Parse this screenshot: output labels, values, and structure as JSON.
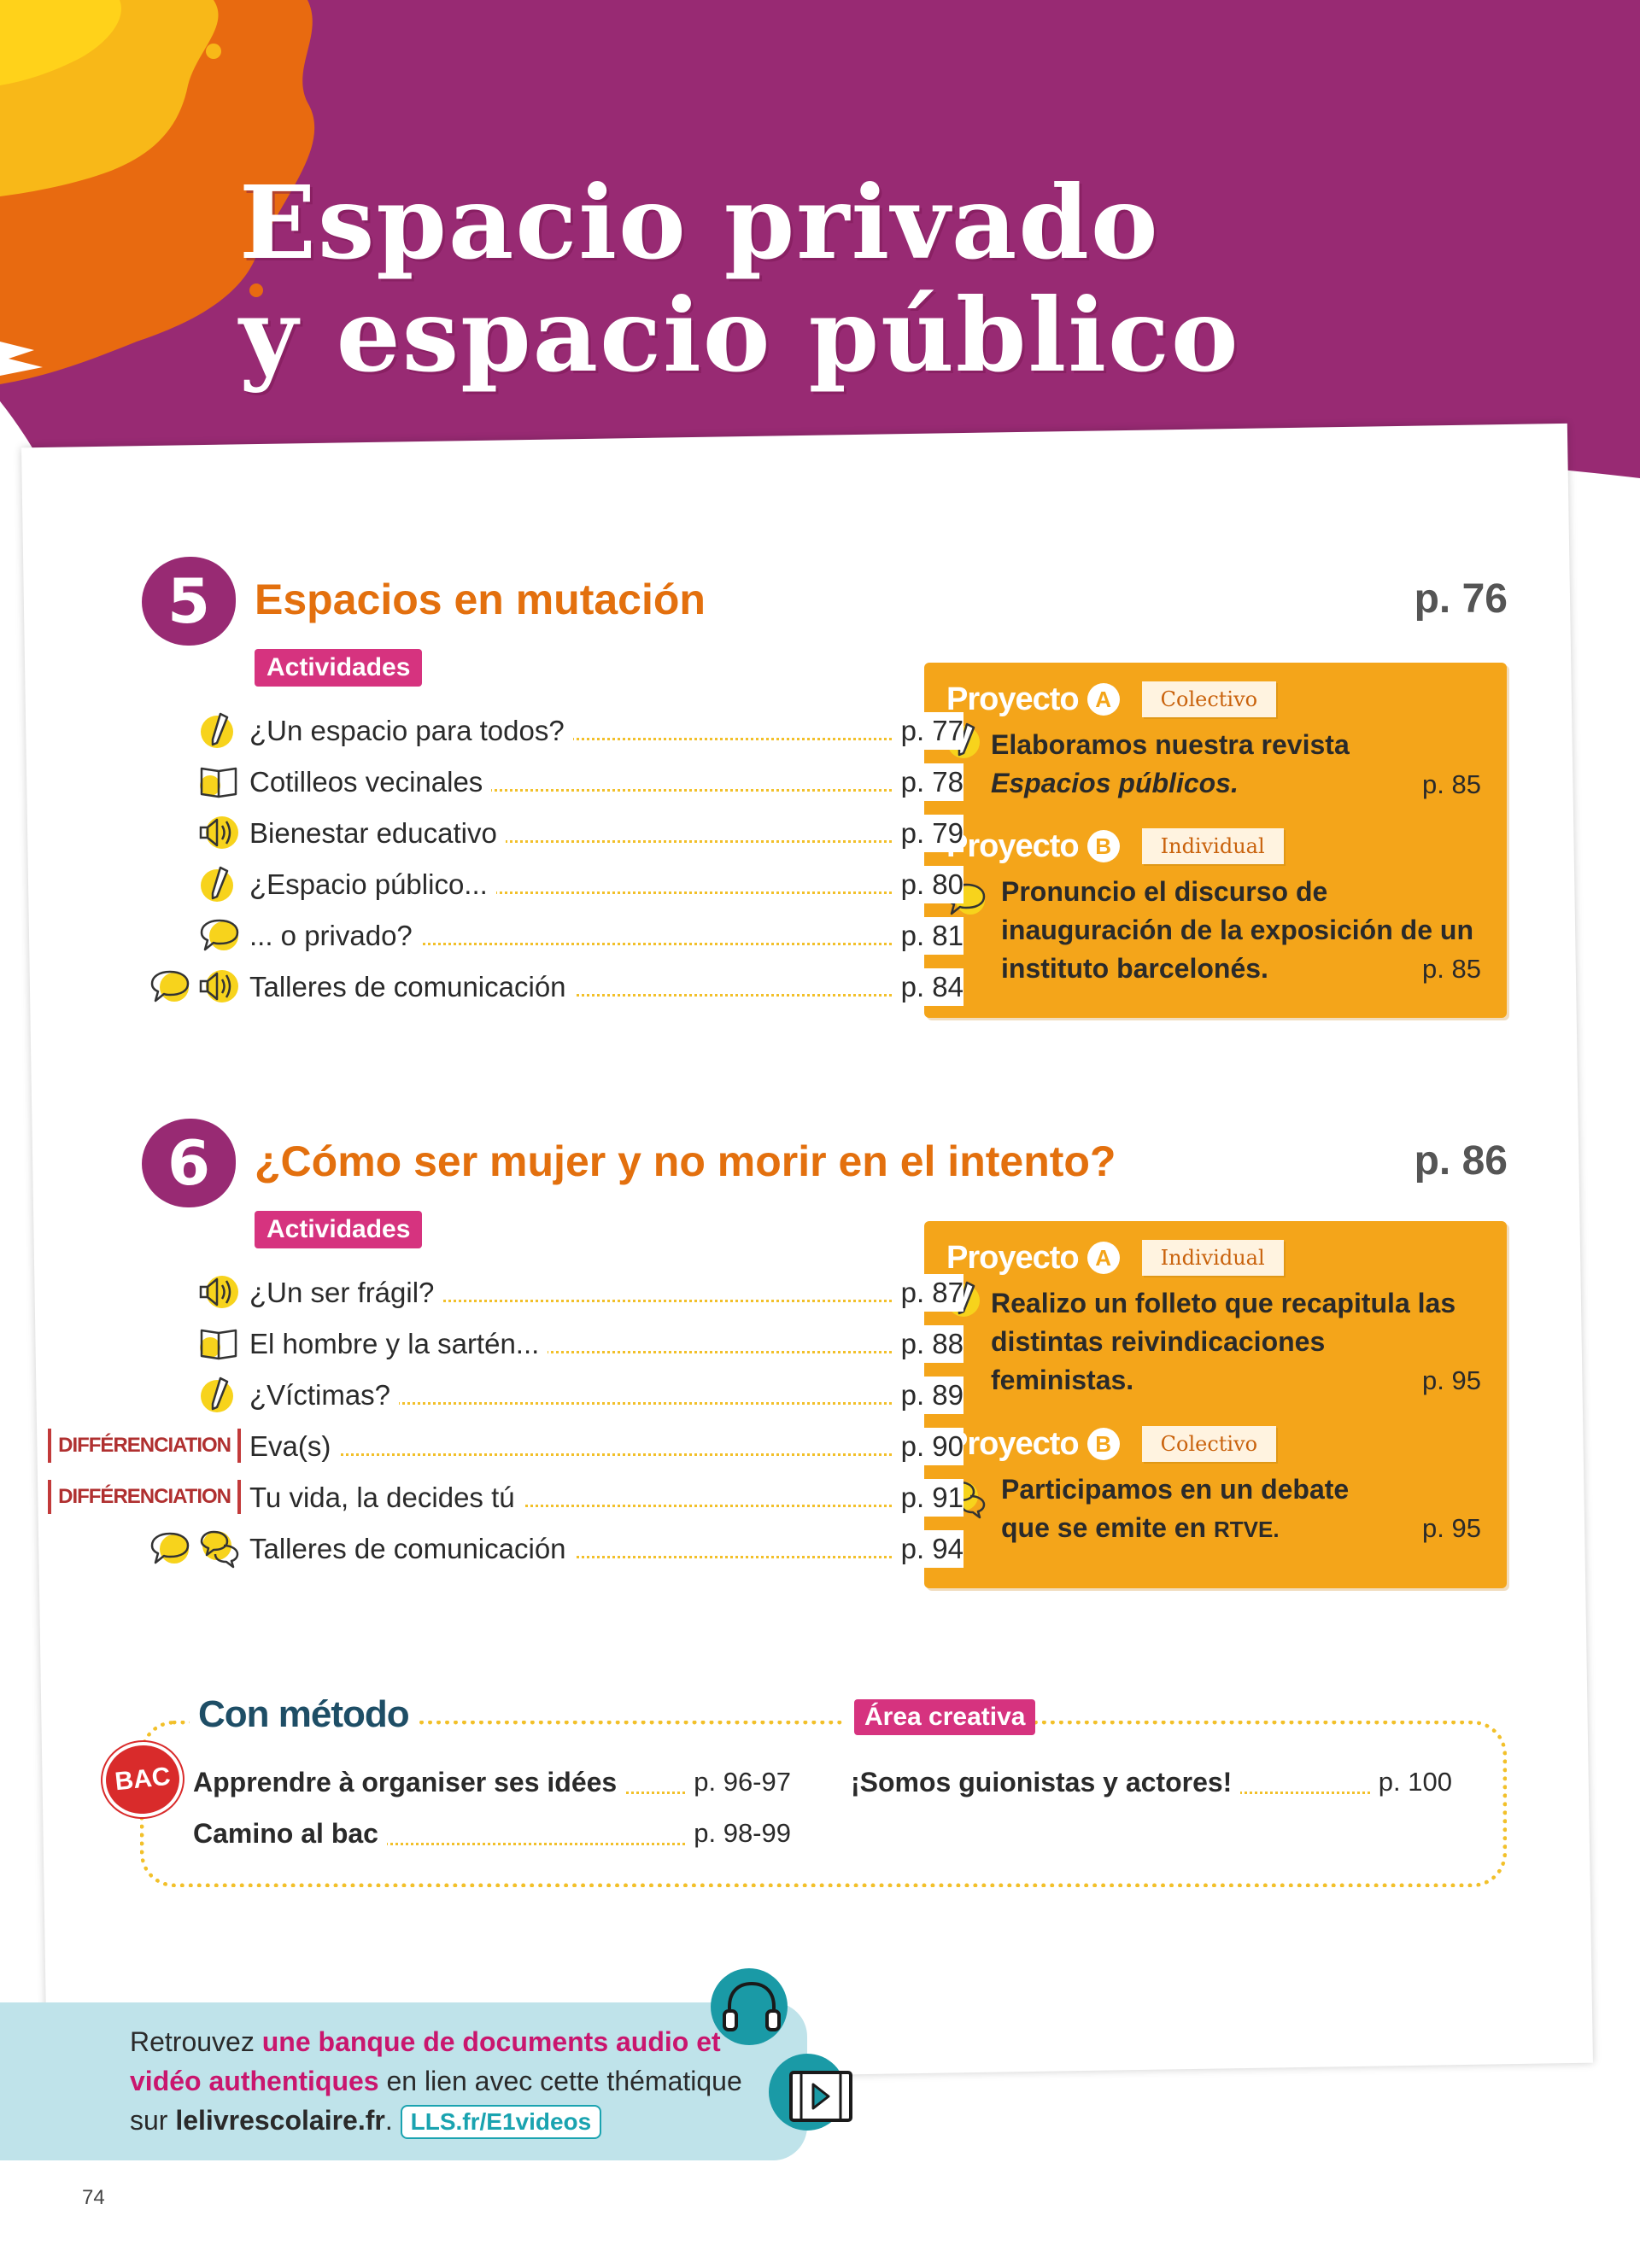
{
  "page": {
    "title_line1": "Espacio privado",
    "title_line2": "y espacio público",
    "page_number": "74"
  },
  "chapters": [
    {
      "number": "5",
      "title": "Espacios en mutación",
      "page": "p. 76",
      "activities_label": "Actividades",
      "activities": [
        {
          "label": "¿Un espacio para todos?",
          "page": "p. 77",
          "icons": [
            "pencil-icon"
          ]
        },
        {
          "label": "Cotilleos vecinales",
          "page": "p. 78",
          "icons": [
            "book-icon"
          ]
        },
        {
          "label": "Bienestar educativo",
          "page": "p. 79",
          "icons": [
            "audio-icon"
          ]
        },
        {
          "label": "¿Espacio público...",
          "page": "p. 80",
          "icons": [
            "pencil-icon"
          ]
        },
        {
          "label": "... o privado?",
          "page": "p. 81",
          "icons": [
            "speech-bubble-icon"
          ]
        },
        {
          "label": "Talleres de comunicación",
          "page": "p. 84",
          "icons": [
            "speech-bubble-icon",
            "audio-icon"
          ]
        }
      ],
      "projects": [
        {
          "word": "Proyecto",
          "letter": "A",
          "type": "Colectivo",
          "text_main": "Elaboramos nuestra revista ",
          "text_em": "Espacios públicos.",
          "page": "p. 85",
          "icon": "pencil-icon"
        },
        {
          "word": "Proyecto",
          "letter": "B",
          "type": "Individual",
          "text_main": "Pronuncio el discurso de inauguración de la exposición de un instituto barcelonés.",
          "page": "p. 85",
          "icon": "speech-bubble-icon"
        }
      ]
    },
    {
      "number": "6",
      "title": "¿Cómo ser mujer y no morir en el intento?",
      "page": "p. 86",
      "activities_label": "Actividades",
      "activities": [
        {
          "label": "¿Un ser frágil?",
          "page": "p. 87",
          "icons": [
            "audio-icon"
          ]
        },
        {
          "label": "El hombre y la sartén...",
          "page": "p. 88",
          "icons": [
            "book-icon"
          ]
        },
        {
          "label": "¿Víctimas?",
          "page": "p. 89",
          "icons": [
            "pencil-icon"
          ]
        },
        {
          "label": "Eva(s)",
          "page": "p. 90",
          "icons": [
            "differenciation-tag"
          ]
        },
        {
          "label": "Tu vida, la decides tú",
          "page": "p. 91",
          "icons": [
            "differenciation-tag"
          ]
        },
        {
          "label": "Talleres de comunicación",
          "page": "p. 94",
          "icons": [
            "speech-bubble-icon",
            "dialogue-icon"
          ]
        }
      ],
      "projects": [
        {
          "word": "Proyecto",
          "letter": "A",
          "type": "Individual",
          "text_main": "Realizo un folleto que recapitula las distintas reivindicaciones feministas.",
          "page": "p. 95",
          "icon": "pencil-icon"
        },
        {
          "word": "Proyecto",
          "letter": "B",
          "type": "Colectivo",
          "text_main": "Participamos en un debate que se emite en ",
          "text_sc": "RTVE.",
          "page": "p. 95",
          "icon": "dialogue-icon"
        }
      ]
    }
  ],
  "differenciation_label": "DIFFÉRENCIATION",
  "method": {
    "title": "Con método",
    "bac_label": "BAC",
    "items": [
      {
        "label": "Apprendre à organiser ses idées",
        "page": "p. 96-97"
      },
      {
        "label": "Camino al bac",
        "page": "p. 98-99"
      }
    ]
  },
  "creative": {
    "badge": "Área creativa",
    "items": [
      {
        "label": "¡Somos guionistas y actores!",
        "page": "p. 100"
      }
    ]
  },
  "info": {
    "t1": "Retrouvez ",
    "hl1": "une banque de documents audio et vidéo authentiques",
    "t2": " en lien avec cette thématique sur ",
    "site": "lelivrescolaire.fr",
    "t3": ".",
    "link": "LLS.fr/E1videos"
  },
  "colors": {
    "header": "#982a73",
    "chapter_title": "#e3700e",
    "project_box": "#f4a51a",
    "badge_pink": "#d6337f",
    "dots": "#f2c02a",
    "info_bg": "#bfe3ea",
    "teal": "#1a9aa6"
  }
}
